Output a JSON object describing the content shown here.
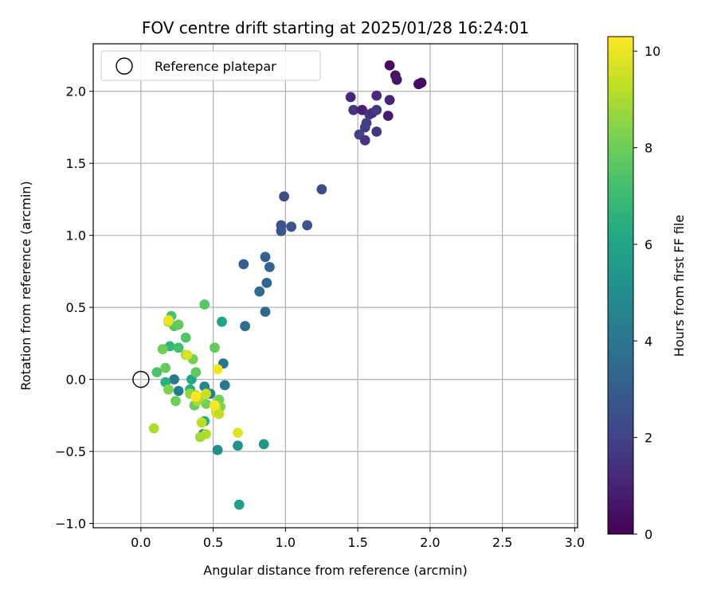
{
  "chart_data": {
    "type": "scatter",
    "title": "FOV centre drift starting at 2025/01/28 16:24:01",
    "xlabel": "Angular distance from reference (arcmin)",
    "ylabel": "Rotation from reference (arcmin)",
    "xlim": [
      -0.33,
      3.02
    ],
    "ylim": [
      -1.03,
      2.33
    ],
    "xticks": [
      "0.0",
      "0.5",
      "1.0",
      "1.5",
      "2.0",
      "2.5",
      "3.0"
    ],
    "xtick_values": [
      0,
      0.5,
      1.0,
      1.5,
      2.0,
      2.5,
      3.0
    ],
    "yticks": [
      "2.0",
      "1.5",
      "1.0",
      "0.5",
      "0.0",
      "−0.5",
      "−1.0"
    ],
    "ytick_values": [
      2.0,
      1.5,
      1.0,
      0.5,
      0.0,
      -0.5,
      -1.0
    ],
    "grid": true,
    "legend": {
      "position": "top-left",
      "label": "Reference platepar"
    },
    "reference": {
      "x": 0,
      "y": 0
    },
    "colorbar": {
      "label": "Hours from first FF file",
      "colormap": "viridis",
      "range": [
        0,
        10.3
      ],
      "ticks": [
        "0",
        "2",
        "4",
        "6",
        "8",
        "10"
      ],
      "tick_values": [
        0,
        2,
        4,
        6,
        8,
        10
      ]
    },
    "points": [
      {
        "x": 1.72,
        "y": 2.18,
        "h": 0.3
      },
      {
        "x": 1.76,
        "y": 2.11,
        "h": 0.5
      },
      {
        "x": 1.77,
        "y": 2.08,
        "h": 0.6
      },
      {
        "x": 1.92,
        "y": 2.05,
        "h": 0.4
      },
      {
        "x": 1.94,
        "y": 2.06,
        "h": 0.3
      },
      {
        "x": 1.71,
        "y": 1.83,
        "h": 0.8
      },
      {
        "x": 1.45,
        "y": 1.96,
        "h": 1.2
      },
      {
        "x": 1.63,
        "y": 1.97,
        "h": 1.3
      },
      {
        "x": 1.72,
        "y": 1.94,
        "h": 1.1
      },
      {
        "x": 1.47,
        "y": 1.87,
        "h": 1.5
      },
      {
        "x": 1.53,
        "y": 1.87,
        "h": 0.9
      },
      {
        "x": 1.58,
        "y": 1.84,
        "h": 1.6
      },
      {
        "x": 1.6,
        "y": 1.85,
        "h": 1.4
      },
      {
        "x": 1.63,
        "y": 1.87,
        "h": 1.7
      },
      {
        "x": 1.55,
        "y": 1.75,
        "h": 1.8
      },
      {
        "x": 1.56,
        "y": 1.78,
        "h": 1.9
      },
      {
        "x": 1.51,
        "y": 1.7,
        "h": 2.0
      },
      {
        "x": 1.63,
        "y": 1.72,
        "h": 1.6
      },
      {
        "x": 1.55,
        "y": 1.66,
        "h": 1.5
      },
      {
        "x": 0.99,
        "y": 1.27,
        "h": 2.3
      },
      {
        "x": 1.25,
        "y": 1.32,
        "h": 2.4
      },
      {
        "x": 0.97,
        "y": 1.07,
        "h": 2.5
      },
      {
        "x": 1.04,
        "y": 1.06,
        "h": 2.6
      },
      {
        "x": 1.15,
        "y": 1.07,
        "h": 2.7
      },
      {
        "x": 0.97,
        "y": 1.03,
        "h": 2.8
      },
      {
        "x": 0.71,
        "y": 0.8,
        "h": 3.0
      },
      {
        "x": 0.86,
        "y": 0.85,
        "h": 3.2
      },
      {
        "x": 0.89,
        "y": 0.78,
        "h": 3.3
      },
      {
        "x": 0.87,
        "y": 0.67,
        "h": 3.4
      },
      {
        "x": 0.82,
        "y": 0.61,
        "h": 3.5
      },
      {
        "x": 0.86,
        "y": 0.47,
        "h": 3.6
      },
      {
        "x": 0.72,
        "y": 0.37,
        "h": 3.7
      },
      {
        "x": 0.57,
        "y": 0.11,
        "h": 4.0
      },
      {
        "x": 0.58,
        "y": -0.04,
        "h": 4.1
      },
      {
        "x": 0.23,
        "y": 0.0,
        "h": 4.2
      },
      {
        "x": 0.26,
        "y": -0.08,
        "h": 4.3
      },
      {
        "x": 0.48,
        "y": -0.1,
        "h": 4.5
      },
      {
        "x": 0.44,
        "y": -0.05,
        "h": 4.6
      },
      {
        "x": 0.43,
        "y": -0.38,
        "h": 4.8
      },
      {
        "x": 0.53,
        "y": -0.49,
        "h": 5.0
      },
      {
        "x": 0.67,
        "y": -0.46,
        "h": 5.2
      },
      {
        "x": 0.85,
        "y": -0.45,
        "h": 5.4
      },
      {
        "x": 0.68,
        "y": -0.87,
        "h": 5.8
      },
      {
        "x": 0.56,
        "y": 0.4,
        "h": 6.0
      },
      {
        "x": 0.35,
        "y": 0.0,
        "h": 6.2
      },
      {
        "x": 0.44,
        "y": -0.29,
        "h": 6.3
      },
      {
        "x": 0.34,
        "y": -0.07,
        "h": 6.4
      },
      {
        "x": 0.17,
        "y": -0.02,
        "h": 6.5
      },
      {
        "x": 0.2,
        "y": 0.23,
        "h": 6.7
      },
      {
        "x": 0.21,
        "y": 0.44,
        "h": 7.3
      },
      {
        "x": 0.23,
        "y": 0.37,
        "h": 7.6
      },
      {
        "x": 0.26,
        "y": 0.38,
        "h": 7.8
      },
      {
        "x": 0.31,
        "y": 0.29,
        "h": 7.5
      },
      {
        "x": 0.26,
        "y": 0.22,
        "h": 7.2
      },
      {
        "x": 0.15,
        "y": 0.21,
        "h": 8.0
      },
      {
        "x": 0.36,
        "y": 0.14,
        "h": 8.1
      },
      {
        "x": 0.11,
        "y": 0.05,
        "h": 7.4
      },
      {
        "x": 0.17,
        "y": 0.08,
        "h": 7.9
      },
      {
        "x": 0.38,
        "y": 0.05,
        "h": 7.7
      },
      {
        "x": 0.44,
        "y": 0.52,
        "h": 7.6
      },
      {
        "x": 0.51,
        "y": 0.22,
        "h": 7.8
      },
      {
        "x": 0.19,
        "y": -0.07,
        "h": 8.3
      },
      {
        "x": 0.24,
        "y": -0.15,
        "h": 8.0
      },
      {
        "x": 0.37,
        "y": -0.18,
        "h": 7.9
      },
      {
        "x": 0.45,
        "y": -0.17,
        "h": 8.2
      },
      {
        "x": 0.54,
        "y": -0.14,
        "h": 8.1
      },
      {
        "x": 0.55,
        "y": -0.19,
        "h": 8.4
      },
      {
        "x": 0.34,
        "y": -0.1,
        "h": 8.6
      },
      {
        "x": 0.31,
        "y": 0.17,
        "h": 8.8
      },
      {
        "x": 0.19,
        "y": 0.4,
        "h": 9.0
      },
      {
        "x": 0.4,
        "y": -0.13,
        "h": 9.1
      },
      {
        "x": 0.38,
        "y": -0.11,
        "h": 9.2
      },
      {
        "x": 0.45,
        "y": -0.1,
        "h": 9.4
      },
      {
        "x": 0.52,
        "y": -0.21,
        "h": 9.5
      },
      {
        "x": 0.52,
        "y": -0.23,
        "h": 9.6
      },
      {
        "x": 0.54,
        "y": -0.24,
        "h": 9.3
      },
      {
        "x": 0.39,
        "y": -0.15,
        "h": 9.0
      },
      {
        "x": 0.42,
        "y": -0.3,
        "h": 9.3
      },
      {
        "x": 0.45,
        "y": -0.38,
        "h": 9.1
      },
      {
        "x": 0.41,
        "y": -0.4,
        "h": 8.9
      },
      {
        "x": 0.09,
        "y": -0.34,
        "h": 9.0
      },
      {
        "x": 0.67,
        "y": -0.37,
        "h": 9.8
      },
      {
        "x": 0.53,
        "y": 0.07,
        "h": 10.1
      },
      {
        "x": 0.51,
        "y": -0.18,
        "h": 10.2
      },
      {
        "x": 0.19,
        "y": 0.41,
        "h": 10.0
      },
      {
        "x": 0.32,
        "y": 0.17,
        "h": 9.7
      },
      {
        "x": 0.38,
        "y": -0.12,
        "h": 10.3
      }
    ]
  }
}
